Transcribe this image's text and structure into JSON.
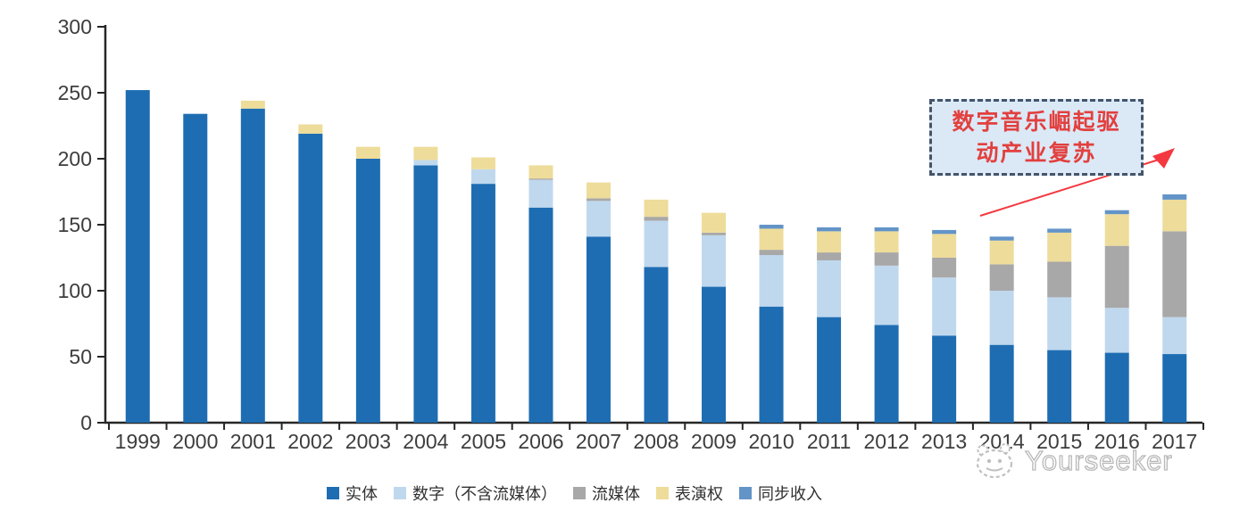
{
  "chart_data": {
    "type": "bar",
    "stacked": true,
    "title": "",
    "xlabel": "",
    "ylabel": "",
    "ylim": [
      0,
      300
    ],
    "y_ticks": [
      0,
      50,
      100,
      150,
      200,
      250,
      300
    ],
    "grid": false,
    "legend_position": "bottom",
    "categories": [
      "1999",
      "2000",
      "2001",
      "2002",
      "2003",
      "2004",
      "2005",
      "2006",
      "2007",
      "2008",
      "2009",
      "2010",
      "2011",
      "2012",
      "2013",
      "2014",
      "2015",
      "2016",
      "2017"
    ],
    "series": [
      {
        "name": "实体",
        "color": "#1E6DB2",
        "values": [
          252,
          234,
          238,
          219,
          200,
          195,
          181,
          163,
          141,
          118,
          103,
          88,
          80,
          74,
          66,
          59,
          55,
          53,
          52
        ]
      },
      {
        "name": "数字（不含流媒体）",
        "color": "#BFD8EE",
        "values": [
          0,
          0,
          0,
          0,
          0,
          4,
          11,
          21,
          27,
          35,
          39,
          39,
          43,
          45,
          44,
          41,
          40,
          34,
          28
        ]
      },
      {
        "name": "流媒体",
        "color": "#A8A8A8",
        "values": [
          0,
          0,
          0,
          0,
          0,
          0,
          0,
          1,
          2,
          3,
          2,
          4,
          6,
          10,
          15,
          20,
          27,
          47,
          65
        ]
      },
      {
        "name": "表演权",
        "color": "#EEDC9A",
        "values": [
          0,
          0,
          6,
          7,
          9,
          10,
          9,
          10,
          12,
          13,
          15,
          16,
          16,
          16,
          18,
          18,
          22,
          24,
          24
        ]
      },
      {
        "name": "同步收入",
        "color": "#6394C8",
        "values": [
          0,
          0,
          0,
          0,
          0,
          0,
          0,
          0,
          0,
          0,
          0,
          3,
          3,
          3,
          3,
          3,
          3,
          3,
          4
        ]
      }
    ],
    "axis_color": "#262626",
    "tick_label_color": "#3D3D3D"
  },
  "annotation": {
    "line1": "数字音乐崛起驱",
    "line2": "动产业复苏",
    "full_text": "数字音乐崛起驱动产业复苏",
    "box_fill": "#DBE9F7",
    "border_color": "#44546A",
    "text_color": "#E2403E",
    "arrow_color": "#F4383F"
  },
  "watermark": {
    "text": "Yourseeker",
    "icon": "cartoon-face-icon"
  }
}
